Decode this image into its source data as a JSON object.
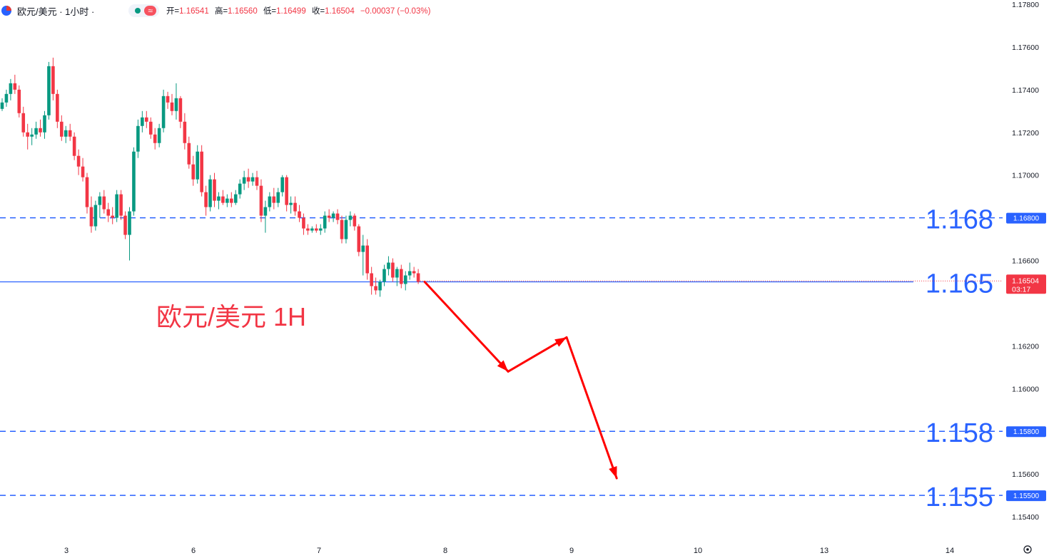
{
  "header": {
    "symbol": "欧元/美元 · 1小时 ·",
    "open_label": "开=",
    "open": "1.16541",
    "high_label": "高=",
    "high": "1.16560",
    "low_label": "低=",
    "low": "1.16499",
    "close_label": "收=",
    "close": "1.16504",
    "change": "−0.00037 (−0.03%)",
    "wave_icon": "≈"
  },
  "colors": {
    "up": "#089981",
    "down": "#f23645",
    "level": "#2962ff",
    "arrow": "#ff0000"
  },
  "watermark": "欧元/美元 1H",
  "current_price": {
    "price": "1.16504",
    "countdown": "03:17"
  },
  "chart_data": {
    "type": "candlestick",
    "ylim": [
      1.153,
      1.178
    ],
    "y_ticks": [
      "1.17800",
      "1.17600",
      "1.17400",
      "1.17200",
      "1.17000",
      "1.16600",
      "1.16200",
      "1.16000",
      "1.15600",
      "1.15400"
    ],
    "x_ticks": [
      "3",
      "6",
      "7",
      "8",
      "9",
      "10",
      "13",
      "14"
    ],
    "candles": [
      [
        1.1731,
        1.1736,
        1.173,
        1.1734
      ],
      [
        1.1734,
        1.174,
        1.1732,
        1.1738
      ],
      [
        1.1738,
        1.1745,
        1.1735,
        1.1743
      ],
      [
        1.1743,
        1.1747,
        1.1738,
        1.174
      ],
      [
        1.174,
        1.1742,
        1.1727,
        1.1729
      ],
      [
        1.1729,
        1.1732,
        1.1718,
        1.172
      ],
      [
        1.172,
        1.1724,
        1.1712,
        1.1718
      ],
      [
        1.1718,
        1.1722,
        1.1714,
        1.1719
      ],
      [
        1.1719,
        1.1725,
        1.1717,
        1.1722
      ],
      [
        1.1722,
        1.1726,
        1.1718,
        1.172
      ],
      [
        1.172,
        1.173,
        1.1717,
        1.1728
      ],
      [
        1.1728,
        1.1753,
        1.1726,
        1.1751
      ],
      [
        1.1751,
        1.1755,
        1.1735,
        1.1738
      ],
      [
        1.1738,
        1.174,
        1.1722,
        1.1725
      ],
      [
        1.1725,
        1.1728,
        1.1716,
        1.1718
      ],
      [
        1.1718,
        1.1723,
        1.1715,
        1.1721
      ],
      [
        1.1721,
        1.1724,
        1.1716,
        1.1718
      ],
      [
        1.1718,
        1.172,
        1.1707,
        1.1709
      ],
      [
        1.1709,
        1.1712,
        1.17,
        1.1704
      ],
      [
        1.1704,
        1.1708,
        1.1697,
        1.1699
      ],
      [
        1.1699,
        1.1701,
        1.1682,
        1.1685
      ],
      [
        1.1685,
        1.169,
        1.1673,
        1.1676
      ],
      [
        1.1676,
        1.1688,
        1.1674,
        1.1686
      ],
      [
        1.1686,
        1.1692,
        1.168,
        1.169
      ],
      [
        1.169,
        1.1693,
        1.1682,
        1.1684
      ],
      [
        1.1684,
        1.1687,
        1.1678,
        1.1681
      ],
      [
        1.1681,
        1.1685,
        1.1677,
        1.168
      ],
      [
        1.168,
        1.1693,
        1.1678,
        1.1691
      ],
      [
        1.1691,
        1.1693,
        1.1679,
        1.1681
      ],
      [
        1.1681,
        1.1683,
        1.167,
        1.1672
      ],
      [
        1.1672,
        1.1685,
        1.166,
        1.1683
      ],
      [
        1.1683,
        1.1713,
        1.1681,
        1.1711
      ],
      [
        1.1711,
        1.1726,
        1.1708,
        1.1723
      ],
      [
        1.1723,
        1.173,
        1.172,
        1.1727
      ],
      [
        1.1727,
        1.173,
        1.1722,
        1.1725
      ],
      [
        1.1725,
        1.1727,
        1.1717,
        1.1719
      ],
      [
        1.1719,
        1.1722,
        1.1712,
        1.1715
      ],
      [
        1.1715,
        1.1724,
        1.1713,
        1.1722
      ],
      [
        1.1722,
        1.174,
        1.172,
        1.1737
      ],
      [
        1.1737,
        1.1739,
        1.1731,
        1.1734
      ],
      [
        1.1734,
        1.1738,
        1.1728,
        1.173
      ],
      [
        1.173,
        1.1743,
        1.1726,
        1.1736
      ],
      [
        1.1736,
        1.1737,
        1.1722,
        1.1725
      ],
      [
        1.1725,
        1.1729,
        1.1712,
        1.1715
      ],
      [
        1.1715,
        1.1718,
        1.1703,
        1.1705
      ],
      [
        1.1705,
        1.1709,
        1.1695,
        1.1698
      ],
      [
        1.1698,
        1.1714,
        1.1696,
        1.1711
      ],
      [
        1.1711,
        1.1714,
        1.169,
        1.1692
      ],
      [
        1.1692,
        1.1695,
        1.1681,
        1.1685
      ],
      [
        1.1685,
        1.17,
        1.1683,
        1.1698
      ],
      [
        1.1698,
        1.1701,
        1.1685,
        1.1688
      ],
      [
        1.1688,
        1.1692,
        1.1684,
        1.169
      ],
      [
        1.169,
        1.1693,
        1.1686,
        1.1687
      ],
      [
        1.1687,
        1.1691,
        1.1685,
        1.1689
      ],
      [
        1.1689,
        1.1692,
        1.1685,
        1.1687
      ],
      [
        1.1687,
        1.1693,
        1.1686,
        1.1691
      ],
      [
        1.1691,
        1.1698,
        1.1689,
        1.1696
      ],
      [
        1.1696,
        1.1702,
        1.1693,
        1.1699
      ],
      [
        1.1699,
        1.1703,
        1.1694,
        1.1697
      ],
      [
        1.1697,
        1.1701,
        1.1695,
        1.1699
      ],
      [
        1.1699,
        1.1702,
        1.1693,
        1.1695
      ],
      [
        1.1695,
        1.1698,
        1.1678,
        1.1681
      ],
      [
        1.1681,
        1.1688,
        1.1673,
        1.1685
      ],
      [
        1.1685,
        1.1692,
        1.1683,
        1.169
      ],
      [
        1.169,
        1.1694,
        1.1684,
        1.1687
      ],
      [
        1.1687,
        1.1694,
        1.1685,
        1.1692
      ],
      [
        1.1692,
        1.17,
        1.169,
        1.1699
      ],
      [
        1.1699,
        1.17,
        1.1683,
        1.1686
      ],
      [
        1.1686,
        1.169,
        1.1682,
        1.1687
      ],
      [
        1.1687,
        1.169,
        1.1681,
        1.1683
      ],
      [
        1.1683,
        1.1686,
        1.1678,
        1.168
      ],
      [
        1.168,
        1.1682,
        1.1672,
        1.1675
      ],
      [
        1.1675,
        1.1677,
        1.1672,
        1.1674
      ],
      [
        1.1674,
        1.1676,
        1.1673,
        1.1675
      ],
      [
        1.1675,
        1.1677,
        1.1673,
        1.1674
      ],
      [
        1.1674,
        1.1677,
        1.1672,
        1.1675
      ],
      [
        1.1675,
        1.1683,
        1.1673,
        1.1681
      ],
      [
        1.1681,
        1.1684,
        1.1678,
        1.168
      ],
      [
        1.168,
        1.1683,
        1.1678,
        1.1682
      ],
      [
        1.1682,
        1.1684,
        1.1677,
        1.1679
      ],
      [
        1.1679,
        1.1681,
        1.1668,
        1.167
      ],
      [
        1.167,
        1.1681,
        1.1668,
        1.1679
      ],
      [
        1.1679,
        1.1683,
        1.1676,
        1.1681
      ],
      [
        1.1681,
        1.1682,
        1.1674,
        1.1676
      ],
      [
        1.1676,
        1.1677,
        1.1662,
        1.1664
      ],
      [
        1.1664,
        1.1672,
        1.1653,
        1.1667
      ],
      [
        1.1667,
        1.167,
        1.1651,
        1.1654
      ],
      [
        1.1654,
        1.1657,
        1.1644,
        1.1648
      ],
      [
        1.1648,
        1.1652,
        1.1644,
        1.1646
      ],
      [
        1.1646,
        1.1651,
        1.1643,
        1.165
      ],
      [
        1.165,
        1.1658,
        1.1648,
        1.1656
      ],
      [
        1.1656,
        1.1662,
        1.1653,
        1.1659
      ],
      [
        1.1659,
        1.1661,
        1.165,
        1.1652
      ],
      [
        1.1652,
        1.1657,
        1.1648,
        1.1656
      ],
      [
        1.1656,
        1.1658,
        1.1647,
        1.1649
      ],
      [
        1.1649,
        1.1655,
        1.1646,
        1.1653
      ],
      [
        1.1653,
        1.1659,
        1.1651,
        1.1655
      ],
      [
        1.1655,
        1.1657,
        1.1652,
        1.1654
      ],
      [
        1.1654,
        1.1656,
        1.1649,
        1.165
      ]
    ],
    "levels": [
      {
        "price": 1.168,
        "label": "1.168",
        "tag": "1.16800",
        "style": "dashed"
      },
      {
        "price": 1.165,
        "label": "1.165",
        "tag": "1.16500",
        "style": "solid"
      },
      {
        "price": 1.158,
        "label": "1.158",
        "tag": "1.15800",
        "style": "dashed"
      },
      {
        "price": 1.155,
        "label": "1.155",
        "tag": "1.15500",
        "style": "dashed"
      }
    ],
    "forecast_path": [
      [
        1.165,
        0
      ],
      [
        1.1608,
        10
      ],
      [
        1.1624,
        17
      ],
      [
        1.1558,
        23
      ]
    ]
  }
}
